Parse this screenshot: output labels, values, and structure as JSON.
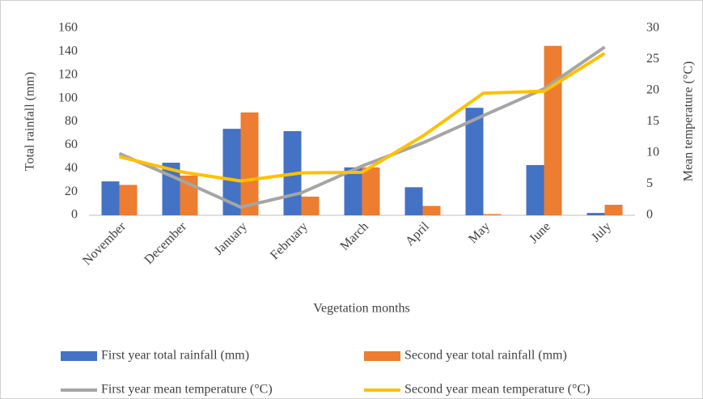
{
  "chart_data": {
    "type": "bar",
    "xlabel": "Vegetation months",
    "ylabel": "Total rainfall (mm)",
    "y2label": "Mean temperature (°C)",
    "categories": [
      "November",
      "December",
      "January",
      "February",
      "March",
      "April",
      "May",
      "June",
      "July"
    ],
    "series": [
      {
        "name": "First year total rainfall (mm)",
        "type": "bar",
        "color": "#4472c4",
        "values": [
          29,
          45,
          74,
          72,
          41,
          24,
          92,
          43,
          2
        ]
      },
      {
        "name": "Second year total rainfall (mm)",
        "type": "bar",
        "color": "#ed7d31",
        "values": [
          26,
          34,
          88,
          16,
          41,
          8,
          1,
          145,
          9
        ]
      },
      {
        "name": "First year mean temperature (°C)",
        "type": "line",
        "axis": "y2",
        "color": "#a5a5a5",
        "values": [
          9.9,
          5.7,
          1.3,
          3.6,
          7.9,
          11.6,
          16,
          20.3,
          27
        ]
      },
      {
        "name": "Second year mean temperature (°C)",
        "type": "line",
        "axis": "y2",
        "color": "#ffc000",
        "values": [
          9.4,
          7,
          5.5,
          6.8,
          6.9,
          12.7,
          19.6,
          19.9,
          26
        ]
      }
    ],
    "ylim": [
      0,
      160
    ],
    "yticks": [
      0,
      20,
      40,
      60,
      80,
      100,
      120,
      140,
      160
    ],
    "y2lim": [
      0,
      30
    ],
    "y2ticks": [
      0,
      5,
      10,
      15,
      20,
      25,
      30
    ],
    "grid": false
  }
}
